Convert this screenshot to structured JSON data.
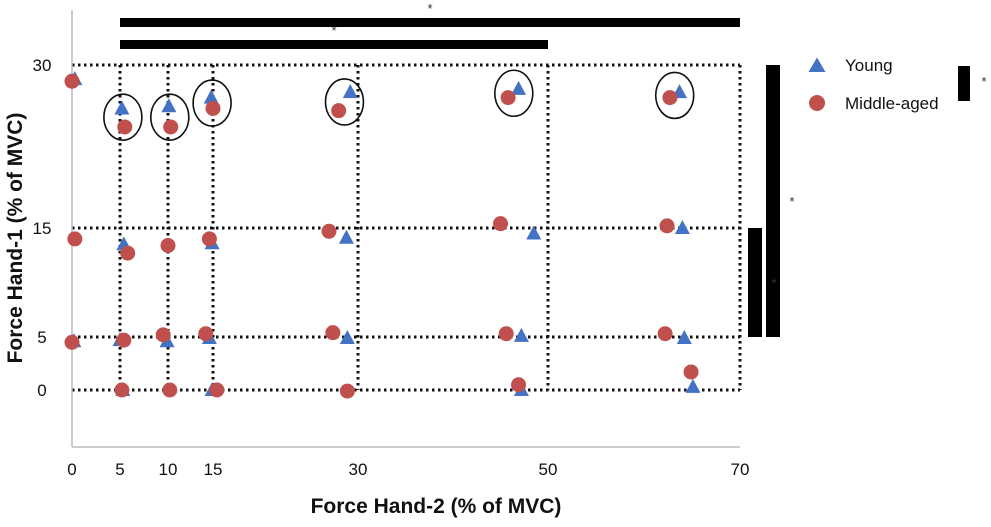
{
  "chart_data": {
    "type": "scatter",
    "title": "",
    "xlabel": "Force Hand-2  (% of MVC)",
    "ylabel": "Force Hand-1 (% of MVC)",
    "xlim": [
      0,
      70
    ],
    "ylim": [
      -5,
      30
    ],
    "x_ticks": [
      "0",
      "5",
      "10",
      "15",
      "30",
      "50",
      "70"
    ],
    "y_ticks": [
      "30",
      "15",
      "5",
      "0"
    ],
    "grid": "dotted reference lines at x = 5, 10, 15, 30, 50, 70 and y = 0, 5, 15, 30",
    "legend_position": "top-right",
    "series": [
      {
        "name": "Young",
        "marker": "triangle",
        "color": "#4472C4",
        "points": [
          [
            0.3,
            28.7
          ],
          [
            5.2,
            26.0
          ],
          [
            10.1,
            26.2
          ],
          [
            14.8,
            27.0
          ],
          [
            29.2,
            27.5
          ],
          [
            46.9,
            27.8
          ],
          [
            63.7,
            27.5
          ],
          [
            5.4,
            13.5
          ],
          [
            14.9,
            13.6
          ],
          [
            28.8,
            14.1
          ],
          [
            48.5,
            14.5
          ],
          [
            64.0,
            15.0
          ],
          [
            0.2,
            4.6
          ],
          [
            5.0,
            4.7
          ],
          [
            9.9,
            4.6
          ],
          [
            14.6,
            4.9
          ],
          [
            28.9,
            4.9
          ],
          [
            47.2,
            5.1
          ],
          [
            64.2,
            4.9
          ],
          [
            5.3,
            0.0
          ],
          [
            14.9,
            0.0
          ],
          [
            47.2,
            0.0
          ],
          [
            65.1,
            0.3
          ]
        ]
      },
      {
        "name": "Middle-aged",
        "marker": "circle",
        "color": "#C0504D",
        "points": [
          [
            0.0,
            28.5
          ],
          [
            5.5,
            24.3
          ],
          [
            10.3,
            24.3
          ],
          [
            15.0,
            26.0
          ],
          [
            28.0,
            25.8
          ],
          [
            45.8,
            27.0
          ],
          [
            62.7,
            27.0
          ],
          [
            0.3,
            14.0
          ],
          [
            5.8,
            12.7
          ],
          [
            10.0,
            13.4
          ],
          [
            14.6,
            14.0
          ],
          [
            27.0,
            14.7
          ],
          [
            45.0,
            15.4
          ],
          [
            62.4,
            15.2
          ],
          [
            0.0,
            4.5
          ],
          [
            5.4,
            4.7
          ],
          [
            9.5,
            5.2
          ],
          [
            14.2,
            5.3
          ],
          [
            27.4,
            5.4
          ],
          [
            45.6,
            5.3
          ],
          [
            62.2,
            5.3
          ],
          [
            5.2,
            0.0
          ],
          [
            10.2,
            0.0
          ],
          [
            15.4,
            0.0
          ],
          [
            28.9,
            -0.1
          ],
          [
            46.9,
            0.5
          ],
          [
            64.9,
            1.7
          ]
        ]
      }
    ],
    "annotations": [
      {
        "type": "ellipse",
        "x": 5.3,
        "y": 25.2
      },
      {
        "type": "ellipse",
        "x": 10.2,
        "y": 25.2
      },
      {
        "type": "ellipse",
        "x": 14.9,
        "y": 26.5
      },
      {
        "type": "ellipse",
        "x": 28.6,
        "y": 26.6
      },
      {
        "type": "ellipse",
        "x": 46.4,
        "y": 27.4
      },
      {
        "type": "ellipse",
        "x": 63.2,
        "y": 27.2
      }
    ],
    "significance": [
      {
        "label": "*",
        "orientation": "top",
        "from": 5,
        "to": 70,
        "level": 1
      },
      {
        "label": "*",
        "orientation": "top",
        "from": 5,
        "to": 50,
        "level": 2
      },
      {
        "label": "*",
        "orientation": "right",
        "from": 5,
        "to": 30,
        "level": 2
      },
      {
        "label": "*",
        "orientation": "right",
        "from": 5,
        "to": 15,
        "level": 1
      },
      {
        "label": "*",
        "orientation": "legend"
      }
    ]
  }
}
